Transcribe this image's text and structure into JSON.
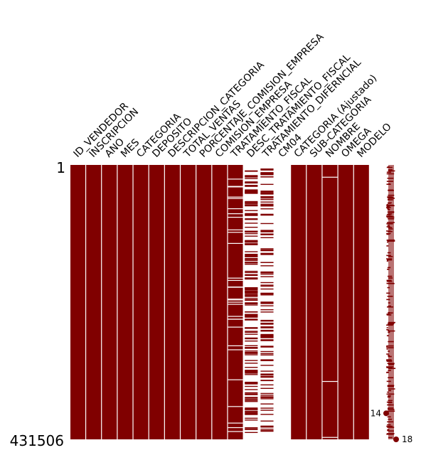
{
  "chart_data": {
    "type": "missing-value-matrix",
    "title": "",
    "colors": {
      "filled": "#800000",
      "missing": "#ffffff",
      "sparkline_marker": "#800000"
    },
    "y_tick_labels": [
      "1",
      "431506"
    ],
    "columns": [
      {
        "name": "ID_VENDEDOR",
        "completeness": 1.0
      },
      {
        "name": "INSCRIPCION",
        "completeness": 1.0
      },
      {
        "name": "ANO",
        "completeness": 1.0
      },
      {
        "name": "MES",
        "completeness": 1.0
      },
      {
        "name": "CATEGORIA",
        "completeness": 1.0
      },
      {
        "name": "DEPOSITO",
        "completeness": 1.0
      },
      {
        "name": "DESCRIPCION_CATEGORIA",
        "completeness": 1.0
      },
      {
        "name": "TOTAL_VENTAS",
        "completeness": 1.0
      },
      {
        "name": "PORCENTAJE_COMISION_EMPRESA",
        "completeness": 1.0
      },
      {
        "name": "COMISION_EMPRESA",
        "completeness": 1.0
      },
      {
        "name": "TRATAMIENTO_FISCAL",
        "completeness": 0.9
      },
      {
        "name": "DESC_TRATAMIENTO_FISCAL",
        "completeness": 0.55
      },
      {
        "name": "TRATAMIENTO_DIFERNCIAL",
        "completeness": 0.4
      },
      {
        "name": "CM04",
        "completeness": 0.0
      },
      {
        "name": "CATEGORIA (Ajustado)",
        "completeness": 1.0
      },
      {
        "name": "SUB-CATEGORIA",
        "completeness": 1.0
      },
      {
        "name": "NOMBRE",
        "completeness": 0.99
      },
      {
        "name": "OMEGA",
        "completeness": 1.0
      },
      {
        "name": "MODELO",
        "completeness": 1.0
      }
    ],
    "sparkline": {
      "min_label": "14",
      "max_label": "18",
      "min_row_fraction": 0.905,
      "max_row_fraction": 1.0
    }
  }
}
